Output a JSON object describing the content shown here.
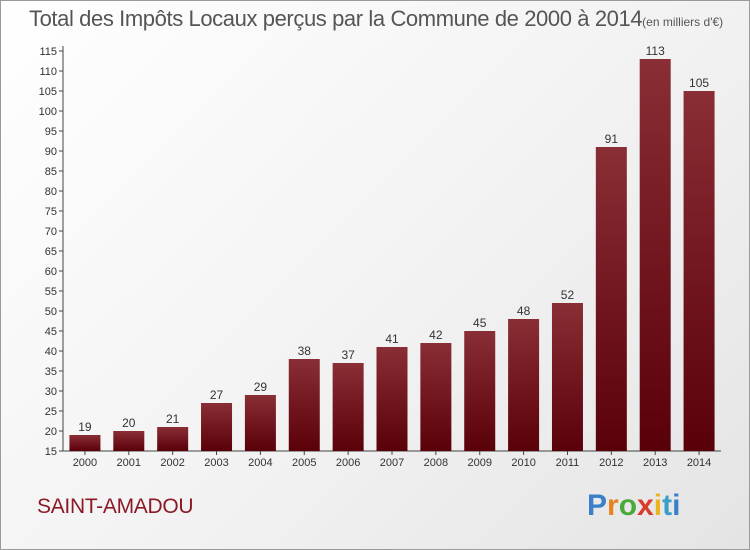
{
  "title": "Total des Impôts Locaux perçus par la Commune de 2000 à 2014",
  "title_unit": "(en milliers d'€)",
  "commune": "SAINT-AMADOU",
  "brand": {
    "letters": [
      "P",
      "r",
      "o",
      "x",
      "i",
      "t",
      "i"
    ]
  },
  "colors": {
    "bar_top": "#8a2e36",
    "bar_bottom": "#5a0008",
    "commune": "#8b1a26"
  },
  "chart_data": {
    "type": "bar",
    "title": "Total des Impôts Locaux perçus par la Commune de 2000 à 2014",
    "categories": [
      "2000",
      "2001",
      "2002",
      "2003",
      "2004",
      "2005",
      "2006",
      "2007",
      "2008",
      "2009",
      "2010",
      "2011",
      "2012",
      "2013",
      "2014"
    ],
    "values": [
      19,
      20,
      21,
      27,
      29,
      38,
      37,
      41,
      42,
      45,
      48,
      52,
      91,
      113,
      105
    ],
    "ylim": [
      15,
      115
    ],
    "yticks": [
      15,
      20,
      25,
      30,
      35,
      40,
      45,
      50,
      55,
      60,
      65,
      70,
      75,
      80,
      85,
      90,
      95,
      100,
      105,
      110,
      115
    ],
    "xlabel": "",
    "ylabel": "",
    "grid": false,
    "data_labels": true
  }
}
